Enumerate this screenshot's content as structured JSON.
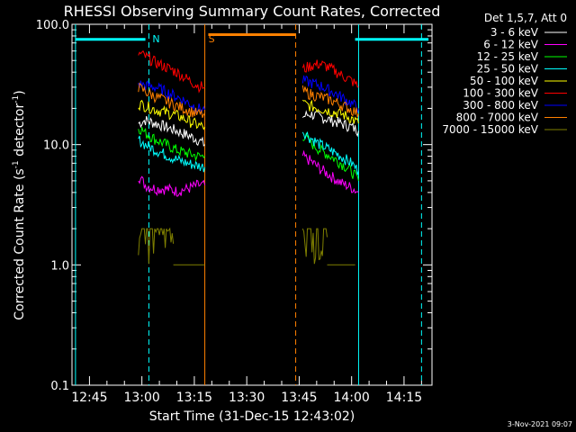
{
  "chart_data": {
    "type": "line",
    "title": "RHESSI Observing Summary Count Rates, Corrected",
    "xlabel": "Start Time (31-Dec-15 12:43:02)",
    "ylabel": "Corrected Count Rate (s⁻¹ detector⁻¹)",
    "ylabel_parts": [
      "Corrected Count Rate (s",
      "-1",
      " detector",
      "-1",
      ")"
    ],
    "yscale": "log",
    "ylim": [
      0.1,
      100
    ],
    "xlim": [
      "12:40",
      "14:23"
    ],
    "x_ticks": [
      "12:45",
      "13:00",
      "13:15",
      "13:30",
      "13:45",
      "14:00",
      "14:15"
    ],
    "y_ticks": [
      "100.0",
      "10.0",
      "1.0",
      "0.1"
    ],
    "legend_header": "Det 1,5,7, Att 0",
    "legend_placement": "right",
    "timestamp": "3-Nov-2021 09:07",
    "series": [
      {
        "name": "3 - 6 keV",
        "color": "#ffffff",
        "segments": [
          {
            "x": [
              "12:59",
              "13:01",
              "13:04",
              "13:07",
              "13:10",
              "13:13",
              "13:16",
              "13:18"
            ],
            "y": [
              15,
              16,
              15,
              14,
              13,
              12,
              11,
              10
            ]
          },
          {
            "x": [
              "13:46",
              "13:48",
              "13:51",
              "13:54",
              "13:57",
              "14:00",
              "14:02"
            ],
            "y": [
              17,
              18,
              17,
              16,
              15,
              14,
              13
            ]
          }
        ]
      },
      {
        "name": "6 - 12 keV",
        "color": "#ff00ff",
        "segments": [
          {
            "x": [
              "12:59",
              "13:01",
              "13:04",
              "13:07",
              "13:10",
              "13:13",
              "13:16",
              "13:18"
            ],
            "y": [
              5.5,
              4.6,
              4.3,
              4.3,
              4.1,
              4.3,
              4.6,
              4.6
            ]
          },
          {
            "x": [
              "13:46",
              "13:48",
              "13:51",
              "13:54",
              "13:57",
              "14:00",
              "14:02"
            ],
            "y": [
              8,
              7.4,
              6.3,
              5.5,
              4.8,
              4.4,
              4
            ]
          }
        ]
      },
      {
        "name": "12 - 25 keV",
        "color": "#00ff00",
        "segments": [
          {
            "x": [
              "12:59",
              "13:01",
              "13:04",
              "13:07",
              "13:10",
              "13:13",
              "13:16",
              "13:18"
            ],
            "y": [
              14,
              12.5,
              11,
              10,
              9,
              8.5,
              8,
              8
            ]
          },
          {
            "x": [
              "13:46",
              "13:48",
              "13:51",
              "13:54",
              "13:57",
              "14:00",
              "14:02"
            ],
            "y": [
              12,
              10.5,
              9,
              8,
              7,
              6,
              5
            ]
          }
        ]
      },
      {
        "name": "25 - 50 keV",
        "color": "#00ffff",
        "segments": [
          {
            "x": [
              "12:59",
              "13:01",
              "13:04",
              "13:07",
              "13:10",
              "13:13",
              "13:16",
              "13:18"
            ],
            "y": [
              11,
              10,
              9,
              8.2,
              7.5,
              7,
              6.7,
              6.5
            ]
          },
          {
            "x": [
              "13:46",
              "13:48",
              "13:51",
              "13:54",
              "13:57",
              "14:00",
              "14:02"
            ],
            "y": [
              13,
              11.5,
              10,
              9,
              8,
              7,
              6
            ]
          }
        ]
      },
      {
        "name": "50 - 100 keV",
        "color": "#ffff00",
        "segments": [
          {
            "x": [
              "12:59",
              "13:01",
              "13:04",
              "13:07",
              "13:10",
              "13:13",
              "13:16",
              "13:18"
            ],
            "y": [
              22,
              21,
              19.5,
              18.5,
              17.5,
              16,
              14.5,
              14
            ]
          },
          {
            "x": [
              "13:46",
              "13:48",
              "13:51",
              "13:54",
              "13:57",
              "14:00",
              "14:02"
            ],
            "y": [
              22,
              21,
              20,
              19,
              18,
              16.5,
              15
            ]
          }
        ]
      },
      {
        "name": "100 - 300 keV",
        "color": "#ff0000",
        "segments": [
          {
            "x": [
              "12:59",
              "13:01",
              "13:04",
              "13:07",
              "13:10",
              "13:13",
              "13:16",
              "13:18"
            ],
            "y": [
              57,
              54,
              48,
              44,
              40,
              35,
              31,
              30
            ]
          },
          {
            "x": [
              "13:46",
              "13:48",
              "13:51",
              "13:54",
              "13:57",
              "14:00",
              "14:02"
            ],
            "y": [
              42,
              45,
              47,
              43,
              38,
              34,
              30
            ]
          }
        ]
      },
      {
        "name": "300 - 800 keV",
        "color": "#0000ff",
        "segments": [
          {
            "x": [
              "12:59",
              "13:01",
              "13:04",
              "13:07",
              "13:10",
              "13:13",
              "13:16",
              "13:18"
            ],
            "y": [
              32,
              31,
              30,
              27.5,
              25,
              22.5,
              20,
              19.5
            ]
          },
          {
            "x": [
              "13:46",
              "13:48",
              "13:51",
              "13:54",
              "13:57",
              "14:00",
              "14:02"
            ],
            "y": [
              34,
              33,
              31,
              28,
              25,
              22,
              20
            ]
          }
        ]
      },
      {
        "name": "800 - 7000 keV",
        "color": "#ff8000",
        "segments": [
          {
            "x": [
              "12:59",
              "13:01",
              "13:04",
              "13:07",
              "13:10",
              "13:13",
              "13:16",
              "13:18"
            ],
            "y": [
              30,
              27.5,
              25,
              23,
              21,
              19.5,
              18,
              17.5
            ]
          },
          {
            "x": [
              "13:46",
              "13:48",
              "13:51",
              "13:54",
              "13:57",
              "14:00",
              "14:02"
            ],
            "y": [
              28,
              26.5,
              25,
              23.5,
              21.5,
              19.5,
              18
            ]
          }
        ]
      },
      {
        "name": "7000 - 15000 keV",
        "color": "#808000",
        "segments": [
          {
            "x": [
              "12:59",
              "13:01",
              "13:03",
              "13:05",
              "13:07",
              "13:09"
            ],
            "y": [
              2,
              2,
              1.9,
              1.6,
              1.6,
              1.5
            ]
          },
          {
            "x": [
              "13:09",
              "13:13",
              "13:18"
            ],
            "y": [
              1,
              1,
              1
            ]
          },
          {
            "x": [
              "13:46",
              "13:48",
              "13:50",
              "13:52",
              "13:53"
            ],
            "y": [
              2,
              1.9,
              1.8,
              1.7,
              1.7
            ]
          },
          {
            "x": [
              "13:53",
              "13:57",
              "14:01"
            ],
            "y": [
              1,
              1,
              1
            ]
          }
        ]
      }
    ],
    "annotations": [
      {
        "type": "bar",
        "label": "",
        "color": "#00ffff",
        "x_start": "12:41",
        "x_end": "13:01",
        "y": 75
      },
      {
        "type": "bar",
        "label": "",
        "color": "#00ffff",
        "x_start": "14:01",
        "x_end": "14:22",
        "y": 75
      },
      {
        "type": "bar",
        "label": "",
        "color": "#ff8000",
        "x_start": "13:19",
        "x_end": "13:44",
        "y": 82
      },
      {
        "type": "vline",
        "label": "N",
        "color": "#00ffff",
        "x": "13:02",
        "dashed": true
      },
      {
        "type": "vline",
        "label": "",
        "color": "#00ffff",
        "x": "12:41",
        "dashed": false
      },
      {
        "type": "vline",
        "label": "",
        "color": "#00ffff",
        "x": "14:02",
        "dashed": false
      },
      {
        "type": "vline",
        "label": "",
        "color": "#00ffff",
        "x": "14:20",
        "dashed": true
      },
      {
        "type": "vline",
        "label": "S",
        "color": "#ff8000",
        "x": "13:18",
        "dashed": false
      },
      {
        "type": "vline",
        "label": "",
        "color": "#ff8000",
        "x": "13:44",
        "dashed": true
      }
    ]
  }
}
